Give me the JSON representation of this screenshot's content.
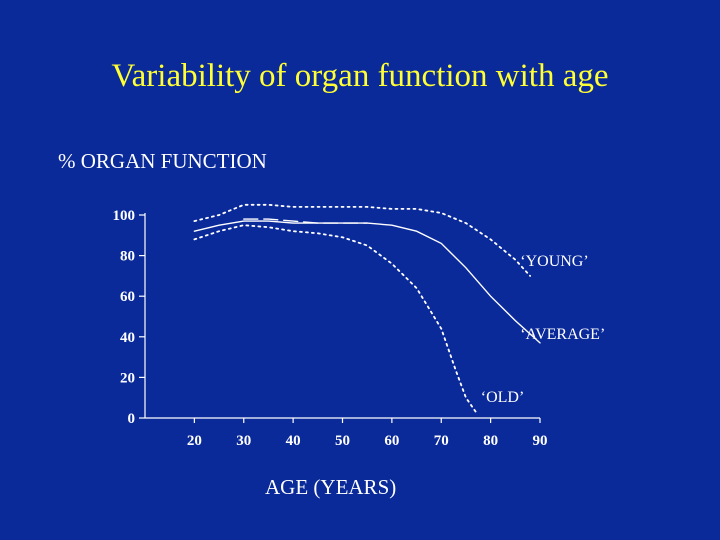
{
  "slide": {
    "title": "Variability of organ function with age"
  },
  "chart_data": {
    "type": "line",
    "title": "Variability of organ function with age",
    "ylabel": "% ORGAN FUNCTION",
    "xlabel": "AGE (YEARS)",
    "xlim": [
      10,
      90
    ],
    "ylim": [
      0,
      100
    ],
    "x_ticks": [
      20,
      30,
      40,
      50,
      60,
      70,
      80,
      90
    ],
    "y_ticks": [
      0,
      20,
      40,
      60,
      80,
      100
    ],
    "grid": false,
    "colors": {
      "background": "#0a2a9a",
      "title": "#ffff33",
      "lines": "#ffffff",
      "axes": "#ffffff"
    },
    "series": [
      {
        "name": "‘YOUNG’",
        "style": "dotted",
        "x": [
          20,
          25,
          30,
          35,
          40,
          45,
          50,
          55,
          60,
          65,
          70,
          75,
          80,
          85,
          88
        ],
        "y": [
          97,
          100,
          105,
          105,
          104,
          104,
          104,
          104,
          103,
          103,
          101,
          96,
          88,
          78,
          70
        ]
      },
      {
        "name": "‘AVERAGE’",
        "style": "solid",
        "x": [
          20,
          25,
          30,
          35,
          40,
          45,
          50,
          55,
          60,
          65,
          70,
          75,
          80,
          85,
          90
        ],
        "y": [
          92,
          95,
          97,
          97,
          96,
          96,
          96,
          96,
          95,
          92,
          86,
          74,
          60,
          48,
          37
        ]
      },
      {
        "name": "",
        "style": "dashed",
        "x": [
          30,
          35,
          40,
          45,
          50,
          55
        ],
        "y": [
          98,
          98,
          97,
          96,
          96,
          96
        ]
      },
      {
        "name": "‘OLD’",
        "style": "dotted",
        "x": [
          20,
          25,
          30,
          35,
          40,
          45,
          50,
          55,
          60,
          65,
          70,
          73,
          75,
          77
        ],
        "y": [
          88,
          92,
          95,
          94,
          92,
          91,
          89,
          85,
          76,
          64,
          44,
          23,
          10,
          3
        ]
      }
    ],
    "annotations": [
      {
        "text": "‘YOUNG’",
        "x": 86,
        "y": 75
      },
      {
        "text": "‘AVERAGE’",
        "x": 86,
        "y": 39
      },
      {
        "text": "‘OLD’",
        "x": 78,
        "y": 8
      }
    ]
  }
}
